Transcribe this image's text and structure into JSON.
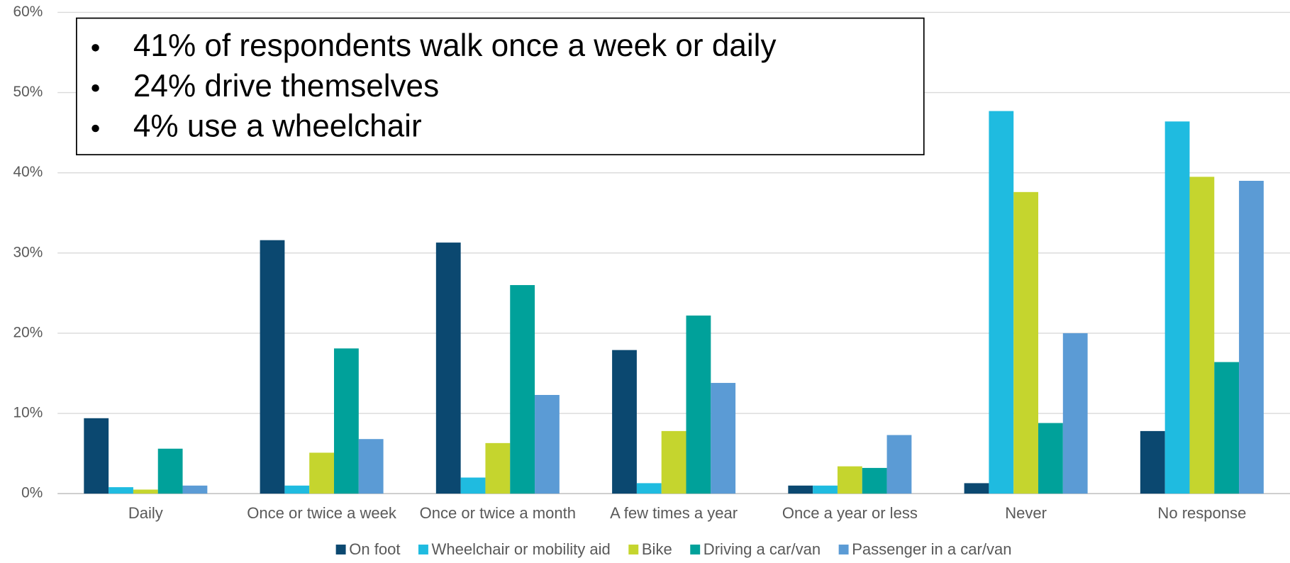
{
  "chart_data": {
    "type": "bar",
    "categories": [
      "Daily",
      "Once or twice a week",
      "Once or twice a month",
      "A few times a year",
      "Once a year or less",
      "Never",
      "No response"
    ],
    "series": [
      {
        "name": "On foot",
        "color": "#0b4870",
        "values": [
          9.4,
          31.6,
          31.3,
          17.9,
          1.0,
          1.3,
          7.8
        ]
      },
      {
        "name": "Wheelchair or mobility aid",
        "color": "#1fbbe0",
        "values": [
          0.8,
          1.0,
          2.0,
          1.3,
          1.0,
          47.7,
          46.4
        ]
      },
      {
        "name": "Bike",
        "color": "#c5d52e",
        "values": [
          0.5,
          5.1,
          6.3,
          7.8,
          3.4,
          37.6,
          39.5
        ]
      },
      {
        "name": "Driving a car/van",
        "color": "#00a19a",
        "values": [
          5.6,
          18.1,
          26.0,
          22.2,
          3.2,
          8.8,
          16.4
        ]
      },
      {
        "name": "Passenger in a car/van",
        "color": "#5b9bd5",
        "values": [
          1.0,
          6.8,
          12.3,
          13.8,
          7.3,
          20.0,
          39.0
        ]
      }
    ],
    "ylim": [
      0,
      60
    ],
    "yticks": [
      {
        "value": 0,
        "label": "0%"
      },
      {
        "value": 10,
        "label": "10%"
      },
      {
        "value": 20,
        "label": "20%"
      },
      {
        "value": 30,
        "label": "30%"
      },
      {
        "value": 40,
        "label": "40%"
      },
      {
        "value": 50,
        "label": "50%"
      },
      {
        "value": 60,
        "label": "60%"
      }
    ],
    "grid": true,
    "legend": "bottom",
    "annotations": [
      "41% of respondents walk once a week or daily",
      "24% drive themselves",
      "4% use a wheelchair"
    ]
  }
}
